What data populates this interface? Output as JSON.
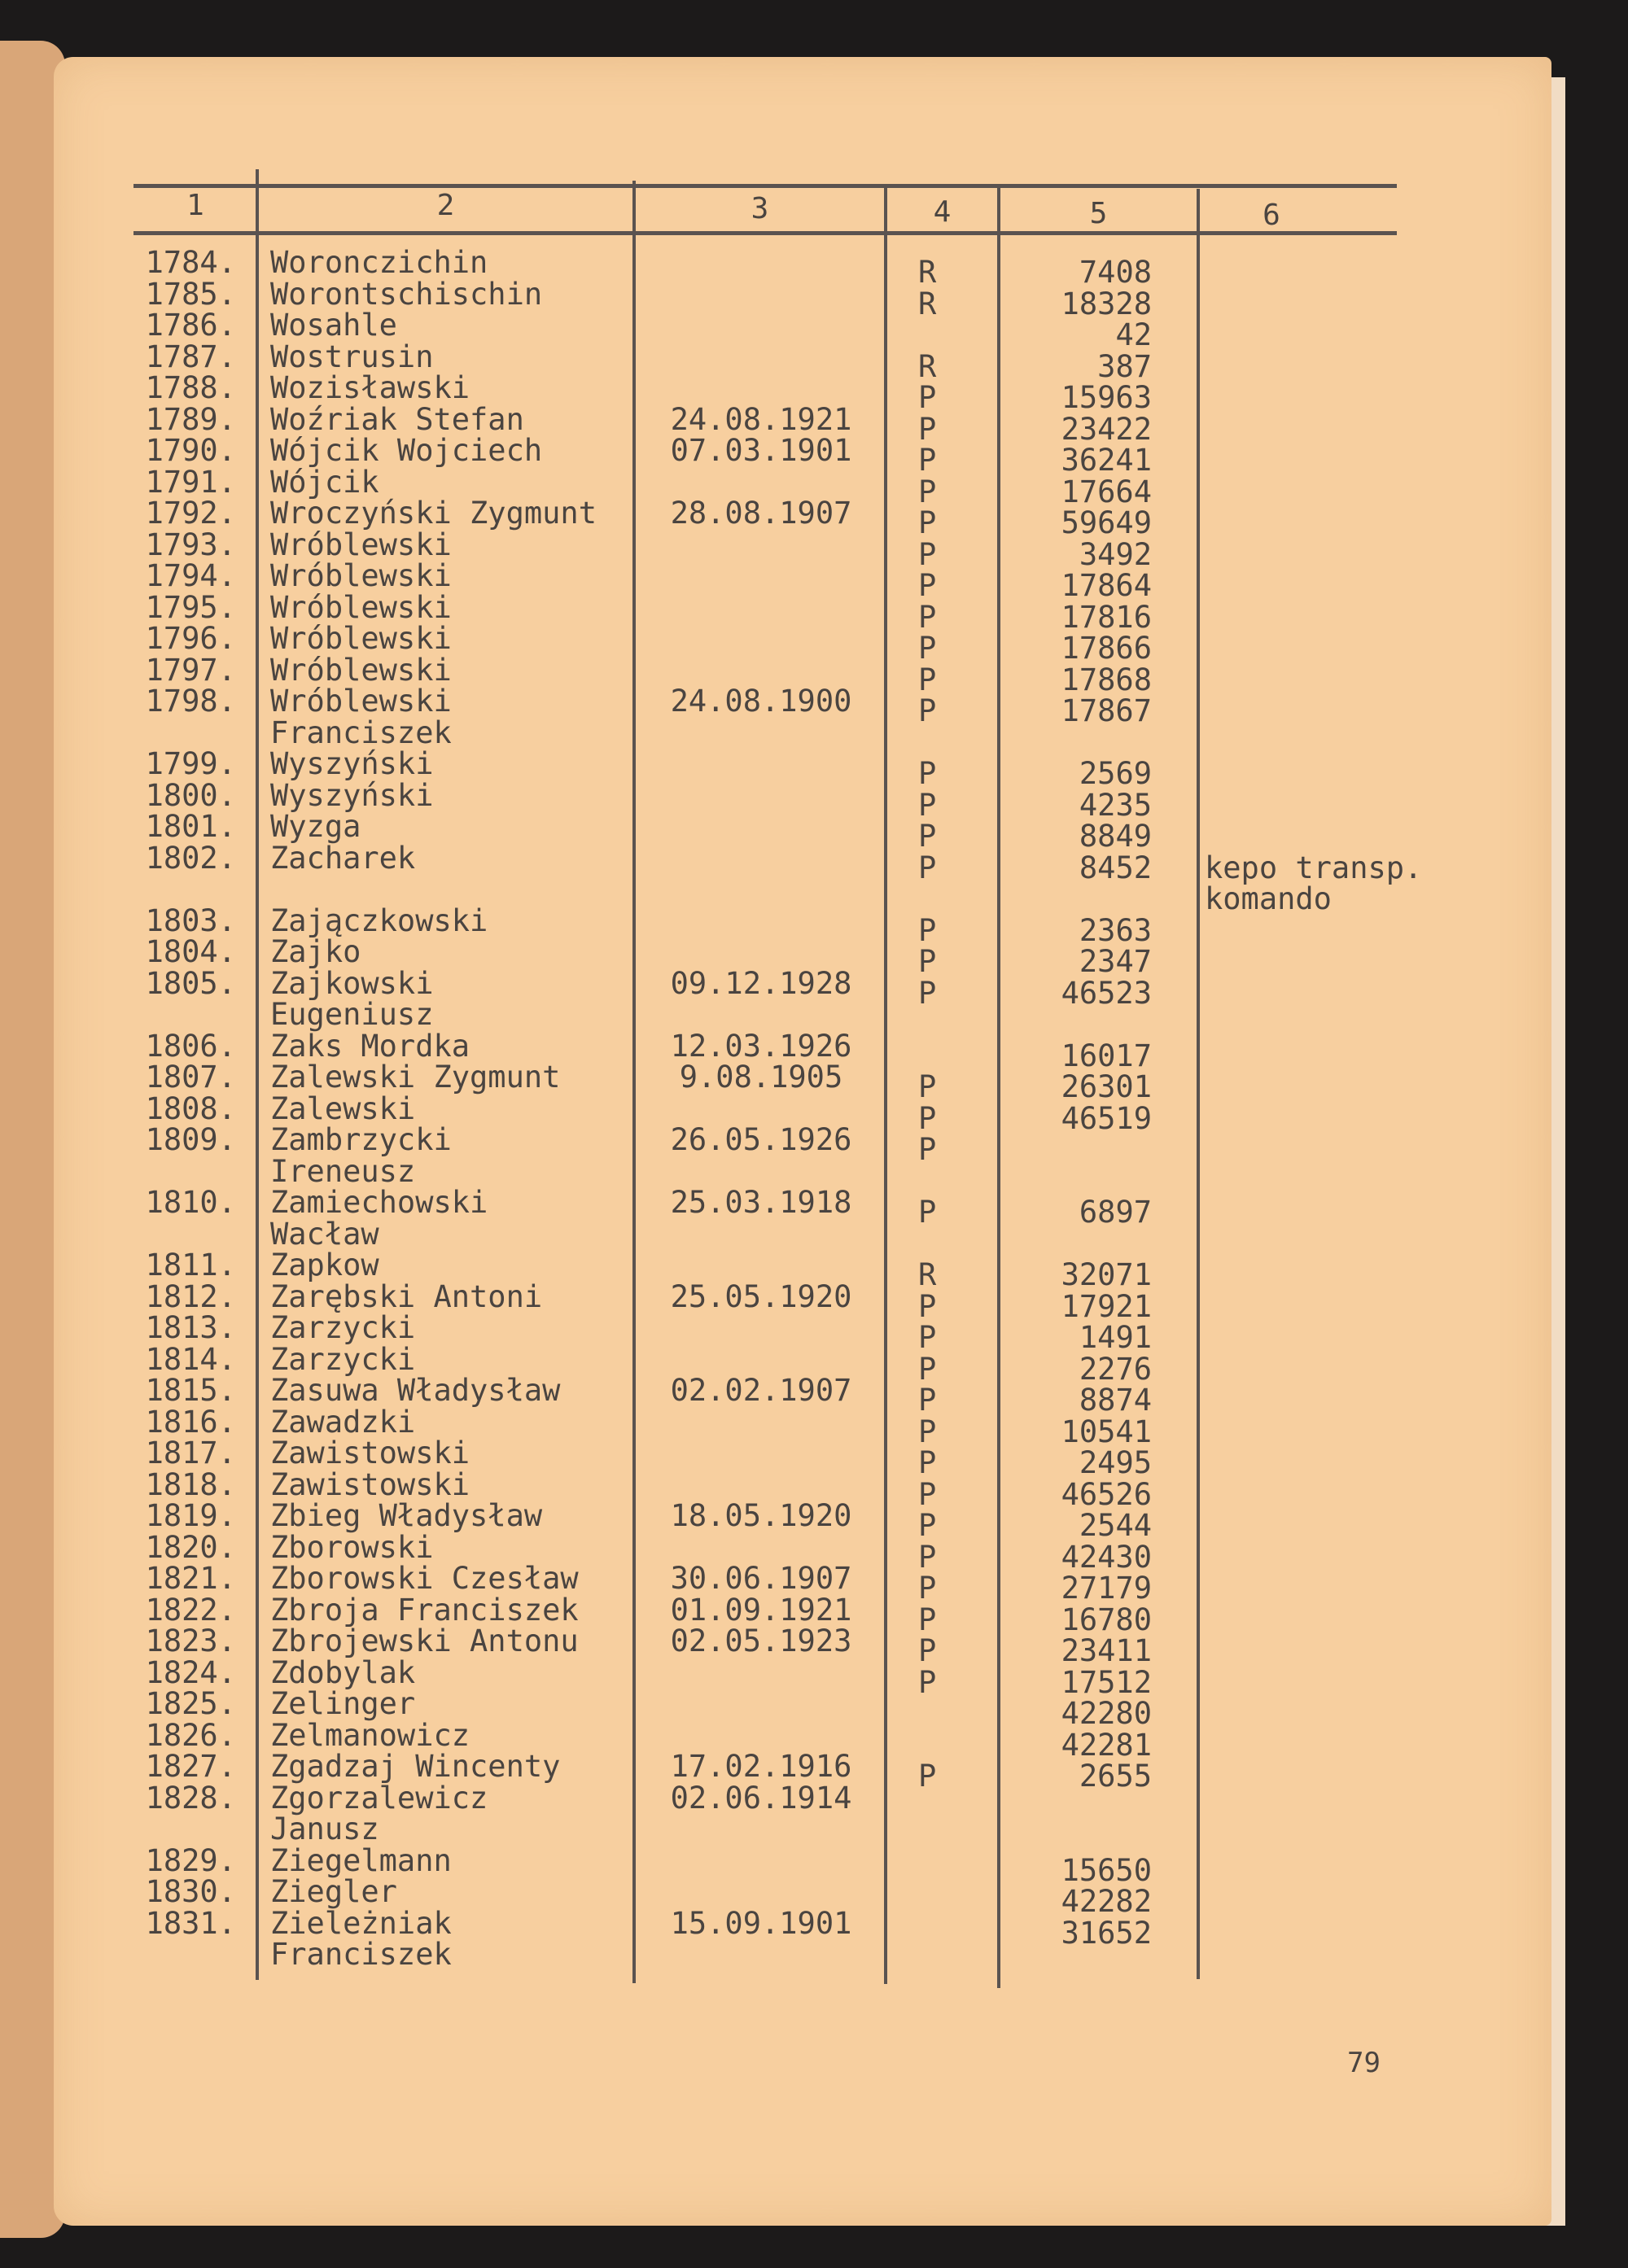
{
  "columns": [
    "1",
    "2",
    "3",
    "4",
    "5",
    "6"
  ],
  "rows": [
    {
      "no": "1784.",
      "name": "Woronczichin",
      "date": "",
      "cat": "R",
      "number": "7408",
      "note": ""
    },
    {
      "no": "1785.",
      "name": "Worontschischin",
      "date": "",
      "cat": "R",
      "number": "18328",
      "note": ""
    },
    {
      "no": "1786.",
      "name": "Wosahle",
      "date": "",
      "cat": "",
      "number": "42",
      "note": ""
    },
    {
      "no": "1787.",
      "name": "Wostrusin",
      "date": "",
      "cat": "R",
      "number": "387",
      "note": ""
    },
    {
      "no": "1788.",
      "name": "Wozisławski",
      "date": "",
      "cat": "P",
      "number": "15963",
      "note": ""
    },
    {
      "no": "1789.",
      "name": "Woźriak Stefan",
      "date": "24.08.1921",
      "cat": "P",
      "number": "23422",
      "note": ""
    },
    {
      "no": "1790.",
      "name": "Wójcik Wojciech",
      "date": "07.03.1901",
      "cat": "P",
      "number": "36241",
      "note": ""
    },
    {
      "no": "1791.",
      "name": "Wójcik",
      "date": "",
      "cat": "P",
      "number": "17664",
      "note": ""
    },
    {
      "no": "1792.",
      "name": "Wroczyński Zygmunt",
      "date": "28.08.1907",
      "cat": "P",
      "number": "59649",
      "note": ""
    },
    {
      "no": "1793.",
      "name": "Wróblewski",
      "date": "",
      "cat": "P",
      "number": "3492",
      "note": ""
    },
    {
      "no": "1794.",
      "name": "Wróblewski",
      "date": "",
      "cat": "P",
      "number": "17864",
      "note": ""
    },
    {
      "no": "1795.",
      "name": "Wróblewski",
      "date": "",
      "cat": "P",
      "number": "17816",
      "note": ""
    },
    {
      "no": "1796.",
      "name": "Wróblewski",
      "date": "",
      "cat": "P",
      "number": "17866",
      "note": ""
    },
    {
      "no": "1797.",
      "name": "Wróblewski",
      "date": "",
      "cat": "P",
      "number": "17868",
      "note": ""
    },
    {
      "no": "1798.",
      "name": "Wróblewski",
      "date": "24.08.1900",
      "cat": "P",
      "number": "17867",
      "note": ""
    },
    {
      "no": "",
      "name": "Franciszek",
      "date": "",
      "cat": "",
      "number": "",
      "note": ""
    },
    {
      "no": "1799.",
      "name": "Wyszyński",
      "date": "",
      "cat": "P",
      "number": "2569",
      "note": ""
    },
    {
      "no": "1800.",
      "name": "Wyszyński",
      "date": "",
      "cat": "P",
      "number": "4235",
      "note": ""
    },
    {
      "no": "1801.",
      "name": "Wyzga",
      "date": "",
      "cat": "P",
      "number": "8849",
      "note": ""
    },
    {
      "no": "1802.",
      "name": "Zacharek",
      "date": "",
      "cat": "P",
      "number": "8452",
      "note": "kepo transp."
    },
    {
      "no": "",
      "name": "",
      "date": "",
      "cat": "",
      "number": "",
      "note": "komando"
    },
    {
      "no": "1803.",
      "name": "Zajączkowski",
      "date": "",
      "cat": "P",
      "number": "2363",
      "note": ""
    },
    {
      "no": "1804.",
      "name": "Zajko",
      "date": "",
      "cat": "P",
      "number": "2347",
      "note": ""
    },
    {
      "no": "1805.",
      "name": "Zajkowski",
      "date": "09.12.1928",
      "cat": "P",
      "number": "46523",
      "note": ""
    },
    {
      "no": "",
      "name": "Eugeniusz",
      "date": "",
      "cat": "",
      "number": "",
      "note": ""
    },
    {
      "no": "1806.",
      "name": "Zaks Mordka",
      "date": "12.03.1926",
      "cat": "",
      "number": "16017",
      "note": ""
    },
    {
      "no": "1807.",
      "name": "Zalewski Zygmunt",
      "date": "9.08.1905",
      "cat": "P",
      "number": "26301",
      "note": ""
    },
    {
      "no": "1808.",
      "name": "Zalewski",
      "date": "",
      "cat": "P",
      "number": "46519",
      "note": ""
    },
    {
      "no": "1809.",
      "name": "Zambrzycki",
      "date": "26.05.1926",
      "cat": "P",
      "number": "",
      "note": ""
    },
    {
      "no": "",
      "name": "Ireneusz",
      "date": "",
      "cat": "",
      "number": "",
      "note": ""
    },
    {
      "no": "1810.",
      "name": "Zamiechowski",
      "date": "25.03.1918",
      "cat": "P",
      "number": "6897",
      "note": ""
    },
    {
      "no": "",
      "name": "Wacław",
      "date": "",
      "cat": "",
      "number": "",
      "note": ""
    },
    {
      "no": "1811.",
      "name": "Zapkow",
      "date": "",
      "cat": "R",
      "number": "32071",
      "note": ""
    },
    {
      "no": "1812.",
      "name": "Zarębski Antoni",
      "date": "25.05.1920",
      "cat": "P",
      "number": "17921",
      "note": ""
    },
    {
      "no": "1813.",
      "name": "Zarzycki",
      "date": "",
      "cat": "P",
      "number": "1491",
      "note": ""
    },
    {
      "no": "1814.",
      "name": "Zarzycki",
      "date": "",
      "cat": "P",
      "number": "2276",
      "note": ""
    },
    {
      "no": "1815.",
      "name": "Zasuwa Władysław",
      "date": "02.02.1907",
      "cat": "P",
      "number": "8874",
      "note": ""
    },
    {
      "no": "1816.",
      "name": "Zawadzki",
      "date": "",
      "cat": "P",
      "number": "10541",
      "note": ""
    },
    {
      "no": "1817.",
      "name": "Zawistowski",
      "date": "",
      "cat": "P",
      "number": "2495",
      "note": ""
    },
    {
      "no": "1818.",
      "name": "Zawistowski",
      "date": "",
      "cat": "P",
      "number": "46526",
      "note": ""
    },
    {
      "no": "1819.",
      "name": "Zbieg Władysław",
      "date": "18.05.1920",
      "cat": "P",
      "number": "2544",
      "note": ""
    },
    {
      "no": "1820.",
      "name": "Zborowski",
      "date": "",
      "cat": "P",
      "number": "42430",
      "note": ""
    },
    {
      "no": "1821.",
      "name": "Zborowski Czesław",
      "date": "30.06.1907",
      "cat": "P",
      "number": "27179",
      "note": ""
    },
    {
      "no": "1822.",
      "name": "Zbroja Franciszek",
      "date": "01.09.1921",
      "cat": "P",
      "number": "16780",
      "note": ""
    },
    {
      "no": "1823.",
      "name": "Zbrojewski Antonu",
      "date": "02.05.1923",
      "cat": "P",
      "number": "23411",
      "note": ""
    },
    {
      "no": "1824.",
      "name": "Zdobylak",
      "date": "",
      "cat": "P",
      "number": "17512",
      "note": ""
    },
    {
      "no": "1825.",
      "name": "Zelinger",
      "date": "",
      "cat": "",
      "number": "42280",
      "note": ""
    },
    {
      "no": "1826.",
      "name": "Zelmanowicz",
      "date": "",
      "cat": "",
      "number": "42281",
      "note": ""
    },
    {
      "no": "1827.",
      "name": "Zgadzaj Wincenty",
      "date": "17.02.1916",
      "cat": "P",
      "number": "2655",
      "note": ""
    },
    {
      "no": "1828.",
      "name": "Zgorzalewicz",
      "date": "02.06.1914",
      "cat": "",
      "number": "",
      "note": ""
    },
    {
      "no": "",
      "name": "Janusz",
      "date": "",
      "cat": "",
      "number": "",
      "note": ""
    },
    {
      "no": "1829.",
      "name": "Ziegelmann",
      "date": "",
      "cat": "",
      "number": "15650",
      "note": ""
    },
    {
      "no": "1830.",
      "name": "Ziegler",
      "date": "",
      "cat": "",
      "number": "42282",
      "note": ""
    },
    {
      "no": "1831.",
      "name": "Zieleżniak",
      "date": "15.09.1901",
      "cat": "",
      "number": "31652",
      "note": ""
    },
    {
      "no": "",
      "name": "Franciszek",
      "date": "",
      "cat": "",
      "number": "",
      "note": ""
    }
  ],
  "page_number": "79"
}
